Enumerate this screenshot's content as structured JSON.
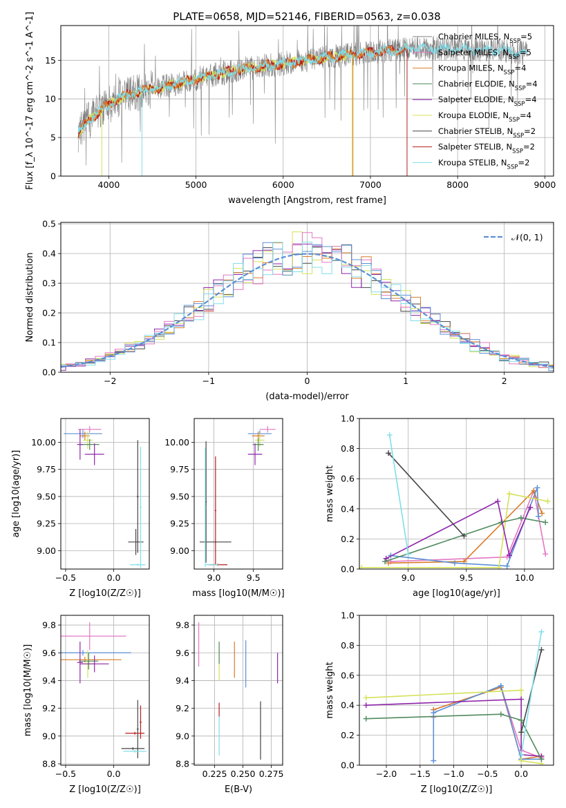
{
  "figure_title": "PLATE=0658, MJD=52146, FIBERID=0563, z=0.038",
  "colors": {
    "Chabrier MILES": "#7f7f7f",
    "Salpeter MILES": "#e377c2",
    "Kroupa MILES": "#d97b28",
    "Chabrier ELODIE": "#4f8a5c",
    "Salpeter ELODIE": "#8e24aa",
    "Kroupa ELODIE": "#d4e157",
    "Chabrier STELIB": "#444444",
    "Salpeter STELIB": "#b71c1c",
    "Kroupa STELIB": "#80deea",
    "gauss": "#5b8fd6"
  },
  "chart_data": [
    {
      "id": "spectrum",
      "type": "line",
      "title": "PLATE=0658, MJD=52146, FIBERID=0563, z=0.038",
      "xlabel": "wavelength [Angstrom, rest frame]",
      "ylabel": "Flux [f_λ 10^-17 erg cm^-2 s^-1 A^-1]",
      "xlim": [
        3450,
        9100
      ],
      "ylim": [
        0,
        19.5
      ],
      "xticks": [
        4000,
        5000,
        6000,
        7000,
        8000,
        9000
      ],
      "yticks": [
        0,
        5,
        10,
        15
      ],
      "legend_position": "top-right",
      "legend": [
        {
          "label": "Chabrier MILES, N_SSP=5",
          "base": "Chabrier MILES, N",
          "sub": "SSP",
          "tail": "=5",
          "series": "Chabrier MILES"
        },
        {
          "label": "Salpeter MILES, N_SSP=5",
          "base": "Salpeter MILES, N",
          "sub": "SSP",
          "tail": "=5",
          "series": "Salpeter MILES"
        },
        {
          "label": "Kroupa MILES, N_SSP=4",
          "base": "Kroupa MILES, N",
          "sub": "SSP",
          "tail": "=4",
          "series": "Kroupa MILES"
        },
        {
          "label": "Chabrier ELODIE, N_SSP=4",
          "base": "Chabrier ELODIE, N",
          "sub": "SSP",
          "tail": "=4",
          "series": "Chabrier ELODIE"
        },
        {
          "label": "Salpeter ELODIE, N_SSP=4",
          "base": "Salpeter ELODIE, N",
          "sub": "SSP",
          "tail": "=4",
          "series": "Salpeter ELODIE"
        },
        {
          "label": "Kroupa ELODIE, N_SSP=4",
          "base": "Kroupa ELODIE, N",
          "sub": "SSP",
          "tail": "=4",
          "series": "Kroupa ELODIE"
        },
        {
          "label": "Chabrier STELIB, N_SSP=2",
          "base": "Chabrier STELIB, N",
          "sub": "SSP",
          "tail": "=2",
          "series": "Chabrier STELIB"
        },
        {
          "label": "Salpeter STELIB, N_SSP=2",
          "base": "Salpeter STELIB, N",
          "sub": "SSP",
          "tail": "=2",
          "series": "Salpeter STELIB"
        },
        {
          "label": "Kroupa STELIB, N_SSP=2",
          "base": "Kroupa STELIB, N",
          "sub": "SSP",
          "tail": "=2",
          "series": "Kroupa STELIB"
        }
      ],
      "continuum": [
        [
          3650,
          5.5
        ],
        [
          3750,
          7.0
        ],
        [
          3900,
          8.5
        ],
        [
          4100,
          10.0
        ],
        [
          4300,
          10.8
        ],
        [
          4600,
          11.5
        ],
        [
          5000,
          12.6
        ],
        [
          5500,
          13.8
        ],
        [
          6000,
          14.6
        ],
        [
          6500,
          15.4
        ],
        [
          7000,
          16.0
        ],
        [
          7500,
          16.6
        ],
        [
          8000,
          16.5
        ],
        [
          8500,
          16.3
        ],
        [
          8800,
          15.9
        ]
      ],
      "models": {
        "Kroupa STELIB": {
          "start": 3650,
          "end": 8800
        },
        "Kroupa ELODIE": {
          "start": 3650,
          "end": 6800
        },
        "Salpeter STELIB": {
          "start": 3650,
          "end": 7420
        },
        "Kroupa MILES": {
          "start": 3650,
          "end": 7420
        }
      },
      "drop_lines": [
        {
          "series": "Kroupa ELODIE",
          "x": 3920
        },
        {
          "series": "Kroupa STELIB",
          "x": 4380
        },
        {
          "series": "Kroupa ELODIE",
          "x": 6790
        },
        {
          "series": "Kroupa MILES",
          "x": 6800
        },
        {
          "series": "Salpeter STELIB",
          "x": 7420
        }
      ]
    },
    {
      "id": "residuals",
      "type": "line",
      "xlabel": "(data-model)/error",
      "ylabel": "Normed distribution",
      "xlim": [
        -2.5,
        2.5
      ],
      "ylim": [
        0,
        0.505
      ],
      "xticks": [
        -2,
        -1,
        0,
        1,
        2
      ],
      "yticks": [
        0.0,
        0.1,
        0.2,
        0.3,
        0.4,
        0.5
      ],
      "legend_position": "top-right",
      "legend": [
        {
          "label": "N(0,1)",
          "base": "𝒩(0, 1)",
          "series": "gauss"
        }
      ],
      "bin_width": 0.1,
      "histograms": [
        {
          "series": "Chabrier STELIB",
          "seed": 11
        },
        {
          "series": "Salpeter ELODIE",
          "seed": 23
        },
        {
          "series": "Kroupa ELODIE",
          "seed": 37
        },
        {
          "series": "Kroupa MILES",
          "seed": 41
        },
        {
          "series": "Salpeter MILES",
          "seed": 53
        },
        {
          "series": "gauss",
          "seed": 67
        },
        {
          "series": "Kroupa STELIB",
          "seed": 79
        }
      ]
    },
    {
      "id": "age_vs_Z",
      "type": "scatter",
      "xlabel": "Z [log10(Z/Z☉)]",
      "ylabel": "age [log10(age/yr)]",
      "xlim": [
        -0.55,
        0.37
      ],
      "ylim": [
        8.83,
        10.22
      ],
      "xticks": [
        -0.5,
        0.0
      ],
      "yticks": [
        9.0,
        9.25,
        9.5,
        9.75,
        10.0
      ],
      "points": [
        {
          "series": "Salpeter MILES",
          "x": -0.25,
          "y": 10.12,
          "xerr": 0.12,
          "yerr": 0.03
        },
        {
          "series": "gauss",
          "x": -0.32,
          "y": 10.08,
          "xerr": 0.2,
          "yerr": 0.04
        },
        {
          "series": "Kroupa MILES",
          "x": -0.3,
          "y": 10.06,
          "xerr": 0.05,
          "yerr": 0.04
        },
        {
          "series": "Kroupa ELODIE",
          "x": -0.27,
          "y": 10.02,
          "xerr": 0.05,
          "yerr": 0.08
        },
        {
          "series": "Chabrier ELODIE",
          "x": -0.25,
          "y": 9.98,
          "xerr": 0.1,
          "yerr": 0.05
        },
        {
          "series": "Salpeter ELODIE",
          "x": -0.2,
          "y": 9.89,
          "xerr": 0.1,
          "yerr": 0.1
        },
        {
          "series": "Salpeter ELODIE",
          "x": -0.35,
          "y": 9.98,
          "xerr": 0.03,
          "yerr": 0.14
        },
        {
          "series": "Chabrier STELIB",
          "x": 0.23,
          "y": 9.08,
          "xerr": 0.08,
          "yerr": 0.12
        },
        {
          "series": "Chabrier STELIB",
          "x": 0.25,
          "y": 9.5,
          "xerr": 0.01,
          "yerr": 0.52
        },
        {
          "series": "Kroupa STELIB",
          "x": 0.28,
          "y": 9.4,
          "xerr": 0.01,
          "yerr": 0.56
        },
        {
          "series": "Kroupa STELIB",
          "x": 0.25,
          "y": 8.87,
          "xerr": 0.08,
          "yerr": 0.01
        }
      ]
    },
    {
      "id": "age_vs_mass",
      "type": "scatter",
      "xlabel": "mass [log10(M/M☉)]",
      "ylabel": "",
      "xlim": [
        8.75,
        9.87
      ],
      "ylim": [
        8.83,
        10.22
      ],
      "xticks": [
        9.0,
        9.5
      ],
      "yticks": [
        9.0,
        9.25,
        9.5,
        9.75,
        10.0
      ],
      "points": [
        {
          "series": "Salpeter MILES",
          "x": 9.68,
          "y": 10.12,
          "xerr": 0.1,
          "yerr": 0.03
        },
        {
          "series": "gauss",
          "x": 9.58,
          "y": 10.08,
          "xerr": 0.15,
          "yerr": 0.03
        },
        {
          "series": "Kroupa MILES",
          "x": 9.56,
          "y": 10.06,
          "xerr": 0.08,
          "yerr": 0.04
        },
        {
          "series": "Kroupa ELODIE",
          "x": 9.58,
          "y": 10.02,
          "xerr": 0.06,
          "yerr": 0.06
        },
        {
          "series": "Chabrier ELODIE",
          "x": 9.56,
          "y": 9.98,
          "xerr": 0.07,
          "yerr": 0.06
        },
        {
          "series": "Salpeter ELODIE",
          "x": 9.52,
          "y": 9.89,
          "xerr": 0.09,
          "yerr": 0.1
        },
        {
          "series": "Chabrier STELIB",
          "x": 9.02,
          "y": 9.08,
          "xerr": 0.2,
          "yerr": 0.01
        },
        {
          "series": "Chabrier STELIB",
          "x": 8.9,
          "y": 9.45,
          "xerr": 0.01,
          "yerr": 0.56
        },
        {
          "series": "Salpeter STELIB",
          "x": 9.02,
          "y": 9.37,
          "xerr": 0.01,
          "yerr": 0.5
        },
        {
          "series": "Kroupa STELIB",
          "x": 8.89,
          "y": 9.4,
          "xerr": 0.01,
          "yerr": 0.55
        },
        {
          "series": "Salpeter STELIB",
          "x": 9.05,
          "y": 8.87,
          "xerr": 0.12,
          "yerr": 0.01
        },
        {
          "series": "Kroupa STELIB",
          "x": 8.98,
          "y": 8.87,
          "xerr": 0.08,
          "yerr": 0.01
        }
      ]
    },
    {
      "id": "weight_vs_age",
      "type": "line",
      "xlabel": "age [log10(age/yr)]",
      "ylabel": "mass weight",
      "xlim": [
        8.58,
        10.25
      ],
      "ylim": [
        0,
        1.0
      ],
      "xticks": [
        9.0,
        9.5,
        10.0
      ],
      "yticks": [
        0.0,
        0.2,
        0.4,
        0.6,
        0.8,
        1.0
      ],
      "series": [
        {
          "name": "Salpeter MILES",
          "points": [
            [
              8.85,
              0.05
            ],
            [
              9.85,
              0.08
            ],
            [
              10.08,
              0.52
            ],
            [
              10.18,
              0.1
            ]
          ]
        },
        {
          "name": "Kroupa MILES",
          "points": [
            [
              8.83,
              0.04
            ],
            [
              9.48,
              0.05
            ],
            [
              10.08,
              0.52
            ],
            [
              10.15,
              0.37
            ]
          ]
        },
        {
          "name": "gauss",
          "points": [
            [
              8.85,
              0.09
            ],
            [
              9.4,
              0.04
            ],
            [
              9.85,
              0.02
            ],
            [
              10.11,
              0.54
            ],
            [
              10.12,
              0.35
            ]
          ]
        },
        {
          "name": "Kroupa ELODIE",
          "points": [
            [
              8.6,
              0.01
            ],
            [
              9.78,
              0.01
            ],
            [
              9.87,
              0.5
            ],
            [
              10.2,
              0.45
            ]
          ]
        },
        {
          "name": "Chabrier ELODIE",
          "points": [
            [
              8.8,
              0.05
            ],
            [
              9.8,
              0.31
            ],
            [
              9.97,
              0.34
            ],
            [
              10.18,
              0.31
            ]
          ]
        },
        {
          "name": "Salpeter ELODIE",
          "points": [
            [
              8.81,
              0.07
            ],
            [
              9.77,
              0.45
            ],
            [
              9.87,
              0.09
            ],
            [
              10.05,
              0.41
            ]
          ]
        },
        {
          "name": "Chabrier STELIB",
          "points": [
            [
              8.83,
              0.77
            ],
            [
              9.48,
              0.22
            ]
          ]
        },
        {
          "name": "Kroupa STELIB",
          "points": [
            [
              8.84,
              0.89
            ],
            [
              9.0,
              0.1
            ]
          ]
        }
      ]
    },
    {
      "id": "mass_vs_Z",
      "type": "scatter",
      "xlabel": "Z [log10(Z/Z☉)]",
      "ylabel": "mass [log10(M/M☉)]",
      "xlim": [
        -0.55,
        0.37
      ],
      "ylim": [
        8.79,
        9.87
      ],
      "xticks": [
        -0.5,
        0.0
      ],
      "yticks": [
        8.8,
        9.0,
        9.2,
        9.4,
        9.6,
        9.8
      ],
      "points": [
        {
          "series": "Salpeter MILES",
          "x": -0.25,
          "y": 9.72,
          "xerr": 0.38,
          "yerr": 0.1
        },
        {
          "series": "gauss",
          "x": -0.32,
          "y": 9.6,
          "xerr": 0.5,
          "yerr": 0.02
        },
        {
          "series": "Kroupa MILES",
          "x": -0.3,
          "y": 9.55,
          "xerr": 0.38,
          "yerr": 0.02
        },
        {
          "series": "Kroupa ELODIE",
          "x": -0.27,
          "y": 9.52,
          "xerr": 0.08,
          "yerr": 0.1
        },
        {
          "series": "Chabrier ELODIE",
          "x": -0.26,
          "y": 9.54,
          "xerr": 0.1,
          "yerr": 0.06
        },
        {
          "series": "Salpeter ELODIE",
          "x": -0.2,
          "y": 9.52,
          "xerr": 0.15,
          "yerr": 0.06
        },
        {
          "series": "Salpeter ELODIE",
          "x": -0.35,
          "y": 9.53,
          "xerr": 0.03,
          "yerr": 0.15
        },
        {
          "series": "Chabrier STELIB",
          "x": 0.25,
          "y": 9.05,
          "xerr": 0.01,
          "yerr": 0.21
        },
        {
          "series": "Salpeter STELIB",
          "x": 0.28,
          "y": 9.1,
          "xerr": 0.01,
          "yerr": 0.12
        },
        {
          "series": "Salpeter STELIB",
          "x": 0.22,
          "y": 9.02,
          "xerr": 0.1,
          "yerr": 0.01
        },
        {
          "series": "Chabrier STELIB",
          "x": 0.2,
          "y": 8.91,
          "xerr": 0.12,
          "yerr": 0.01
        },
        {
          "series": "Kroupa STELIB",
          "x": 0.22,
          "y": 8.89,
          "xerr": 0.12,
          "yerr": 0.01
        }
      ]
    },
    {
      "id": "mass_vs_ebv",
      "type": "scatter",
      "xlabel": "E(B-V)",
      "ylabel": "",
      "xlim": [
        0.207,
        0.285
      ],
      "ylim": [
        8.79,
        9.87
      ],
      "xticks": [
        0.225,
        0.25,
        0.275
      ],
      "yticks": [
        8.8,
        9.0,
        9.2,
        9.4,
        9.6,
        9.8
      ],
      "points": [
        {
          "series": "Salpeter MILES",
          "x": 0.211,
          "y": 9.66,
          "yerr": 0.16
        },
        {
          "series": "Kroupa ELODIE",
          "x": 0.229,
          "y": 9.54,
          "yerr": 0.14
        },
        {
          "series": "Chabrier ELODIE",
          "x": 0.229,
          "y": 9.6,
          "yerr": 0.08
        },
        {
          "series": "Kroupa MILES",
          "x": 0.2425,
          "y": 9.55,
          "yerr": 0.13
        },
        {
          "series": "gauss",
          "x": 0.2525,
          "y": 9.52,
          "yerr": 0.17
        },
        {
          "series": "Salpeter ELODIE",
          "x": 0.2805,
          "y": 9.49,
          "yerr": 0.11
        },
        {
          "series": "Salpeter STELIB",
          "x": 0.229,
          "y": 9.19,
          "yerr": 0.05
        },
        {
          "series": "Kroupa STELIB",
          "x": 0.229,
          "y": 9.0,
          "yerr": 0.14
        },
        {
          "series": "Chabrier STELIB",
          "x": 0.2655,
          "y": 9.04,
          "yerr": 0.21
        }
      ]
    },
    {
      "id": "weight_vs_Z",
      "type": "line",
      "xlabel": "Z [log10(Z/Z☉)]",
      "ylabel": "mass weight",
      "xlim": [
        -2.4,
        0.48
      ],
      "ylim": [
        0,
        1.0
      ],
      "xticks": [
        -2.0,
        -1.5,
        -1.0,
        -0.5,
        0.0
      ],
      "yticks": [
        0.0,
        0.2,
        0.4,
        0.6,
        0.8,
        1.0
      ],
      "series": [
        {
          "name": "Salpeter MILES",
          "points": [
            [
              -1.3,
              0.32
            ],
            [
              -1.3,
              0.37
            ],
            [
              -0.3,
              0.52
            ],
            [
              0.0,
              0.1
            ],
            [
              0.3,
              0.05
            ]
          ]
        },
        {
          "name": "Kroupa MILES",
          "points": [
            [
              -1.3,
              0.37
            ],
            [
              -0.3,
              0.52
            ],
            [
              0.0,
              0.04
            ],
            [
              0.3,
              0.06
            ]
          ]
        },
        {
          "name": "gauss",
          "points": [
            [
              -1.3,
              0.03
            ],
            [
              -1.3,
              0.35
            ],
            [
              -0.3,
              0.53
            ],
            [
              0.0,
              0.04
            ],
            [
              0.3,
              0.04
            ]
          ]
        },
        {
          "name": "Kroupa ELODIE",
          "points": [
            [
              -2.3,
              0.45
            ],
            [
              0.0,
              0.5
            ],
            [
              0.0,
              0.03
            ],
            [
              0.3,
              0.01
            ]
          ]
        },
        {
          "name": "Salpeter ELODIE",
          "points": [
            [
              -2.3,
              0.4
            ],
            [
              0.0,
              0.44
            ],
            [
              0.0,
              0.07
            ],
            [
              0.3,
              0.06
            ]
          ]
        },
        {
          "name": "Chabrier ELODIE",
          "points": [
            [
              -2.3,
              0.31
            ],
            [
              -0.3,
              0.34
            ],
            [
              0.0,
              0.3
            ],
            [
              0.3,
              0.04
            ]
          ]
        },
        {
          "name": "Chabrier STELIB",
          "points": [
            [
              0.0,
              0.22
            ],
            [
              0.3,
              0.77
            ]
          ]
        },
        {
          "name": "Kroupa STELIB",
          "points": [
            [
              0.0,
              0.07
            ],
            [
              0.3,
              0.89
            ]
          ]
        }
      ]
    }
  ]
}
